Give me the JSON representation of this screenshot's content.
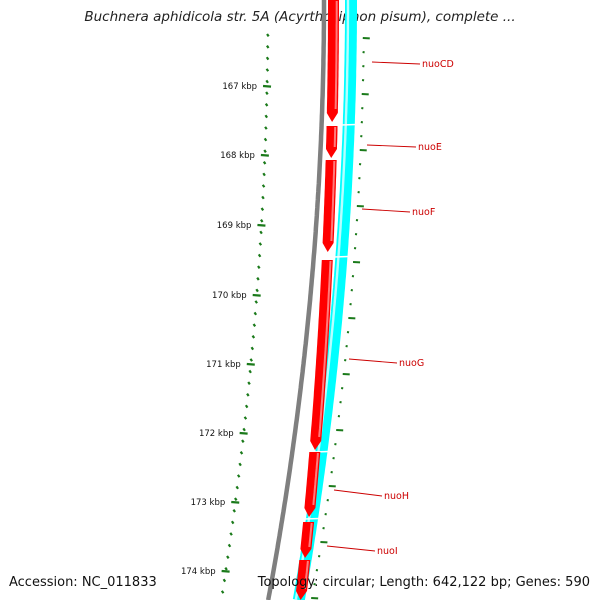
{
  "title": "Buchnera aphidicola str. 5A (Acyrthosiphon pisum), complete ...",
  "footer": {
    "accession": "Accession: NC_011833",
    "summary": "Topology: circular; Length: 642,122 bp; Genes: 590"
  },
  "colors": {
    "backbone": "#808080",
    "forward_genes": "#ff0000",
    "reverse_track": "#00ffff",
    "ticks": "#1a7a1a",
    "gene_labels": "#cc0000"
  },
  "tick_labels": [
    {
      "kbp": 167,
      "text": "167 kbp"
    },
    {
      "kbp": 168,
      "text": "168 kbp"
    },
    {
      "kbp": 169,
      "text": "169 kbp"
    },
    {
      "kbp": 170,
      "text": "170 kbp"
    },
    {
      "kbp": 171,
      "text": "171 kbp"
    },
    {
      "kbp": 172,
      "text": "172 kbp"
    },
    {
      "kbp": 173,
      "text": "173 kbp"
    },
    {
      "kbp": 174,
      "text": "174 kbp"
    }
  ],
  "genes": [
    {
      "name": "nuoCD"
    },
    {
      "name": "nuoE"
    },
    {
      "name": "nuoF"
    },
    {
      "name": "nuoG"
    },
    {
      "name": "nuoH"
    },
    {
      "name": "nuoI"
    }
  ]
}
